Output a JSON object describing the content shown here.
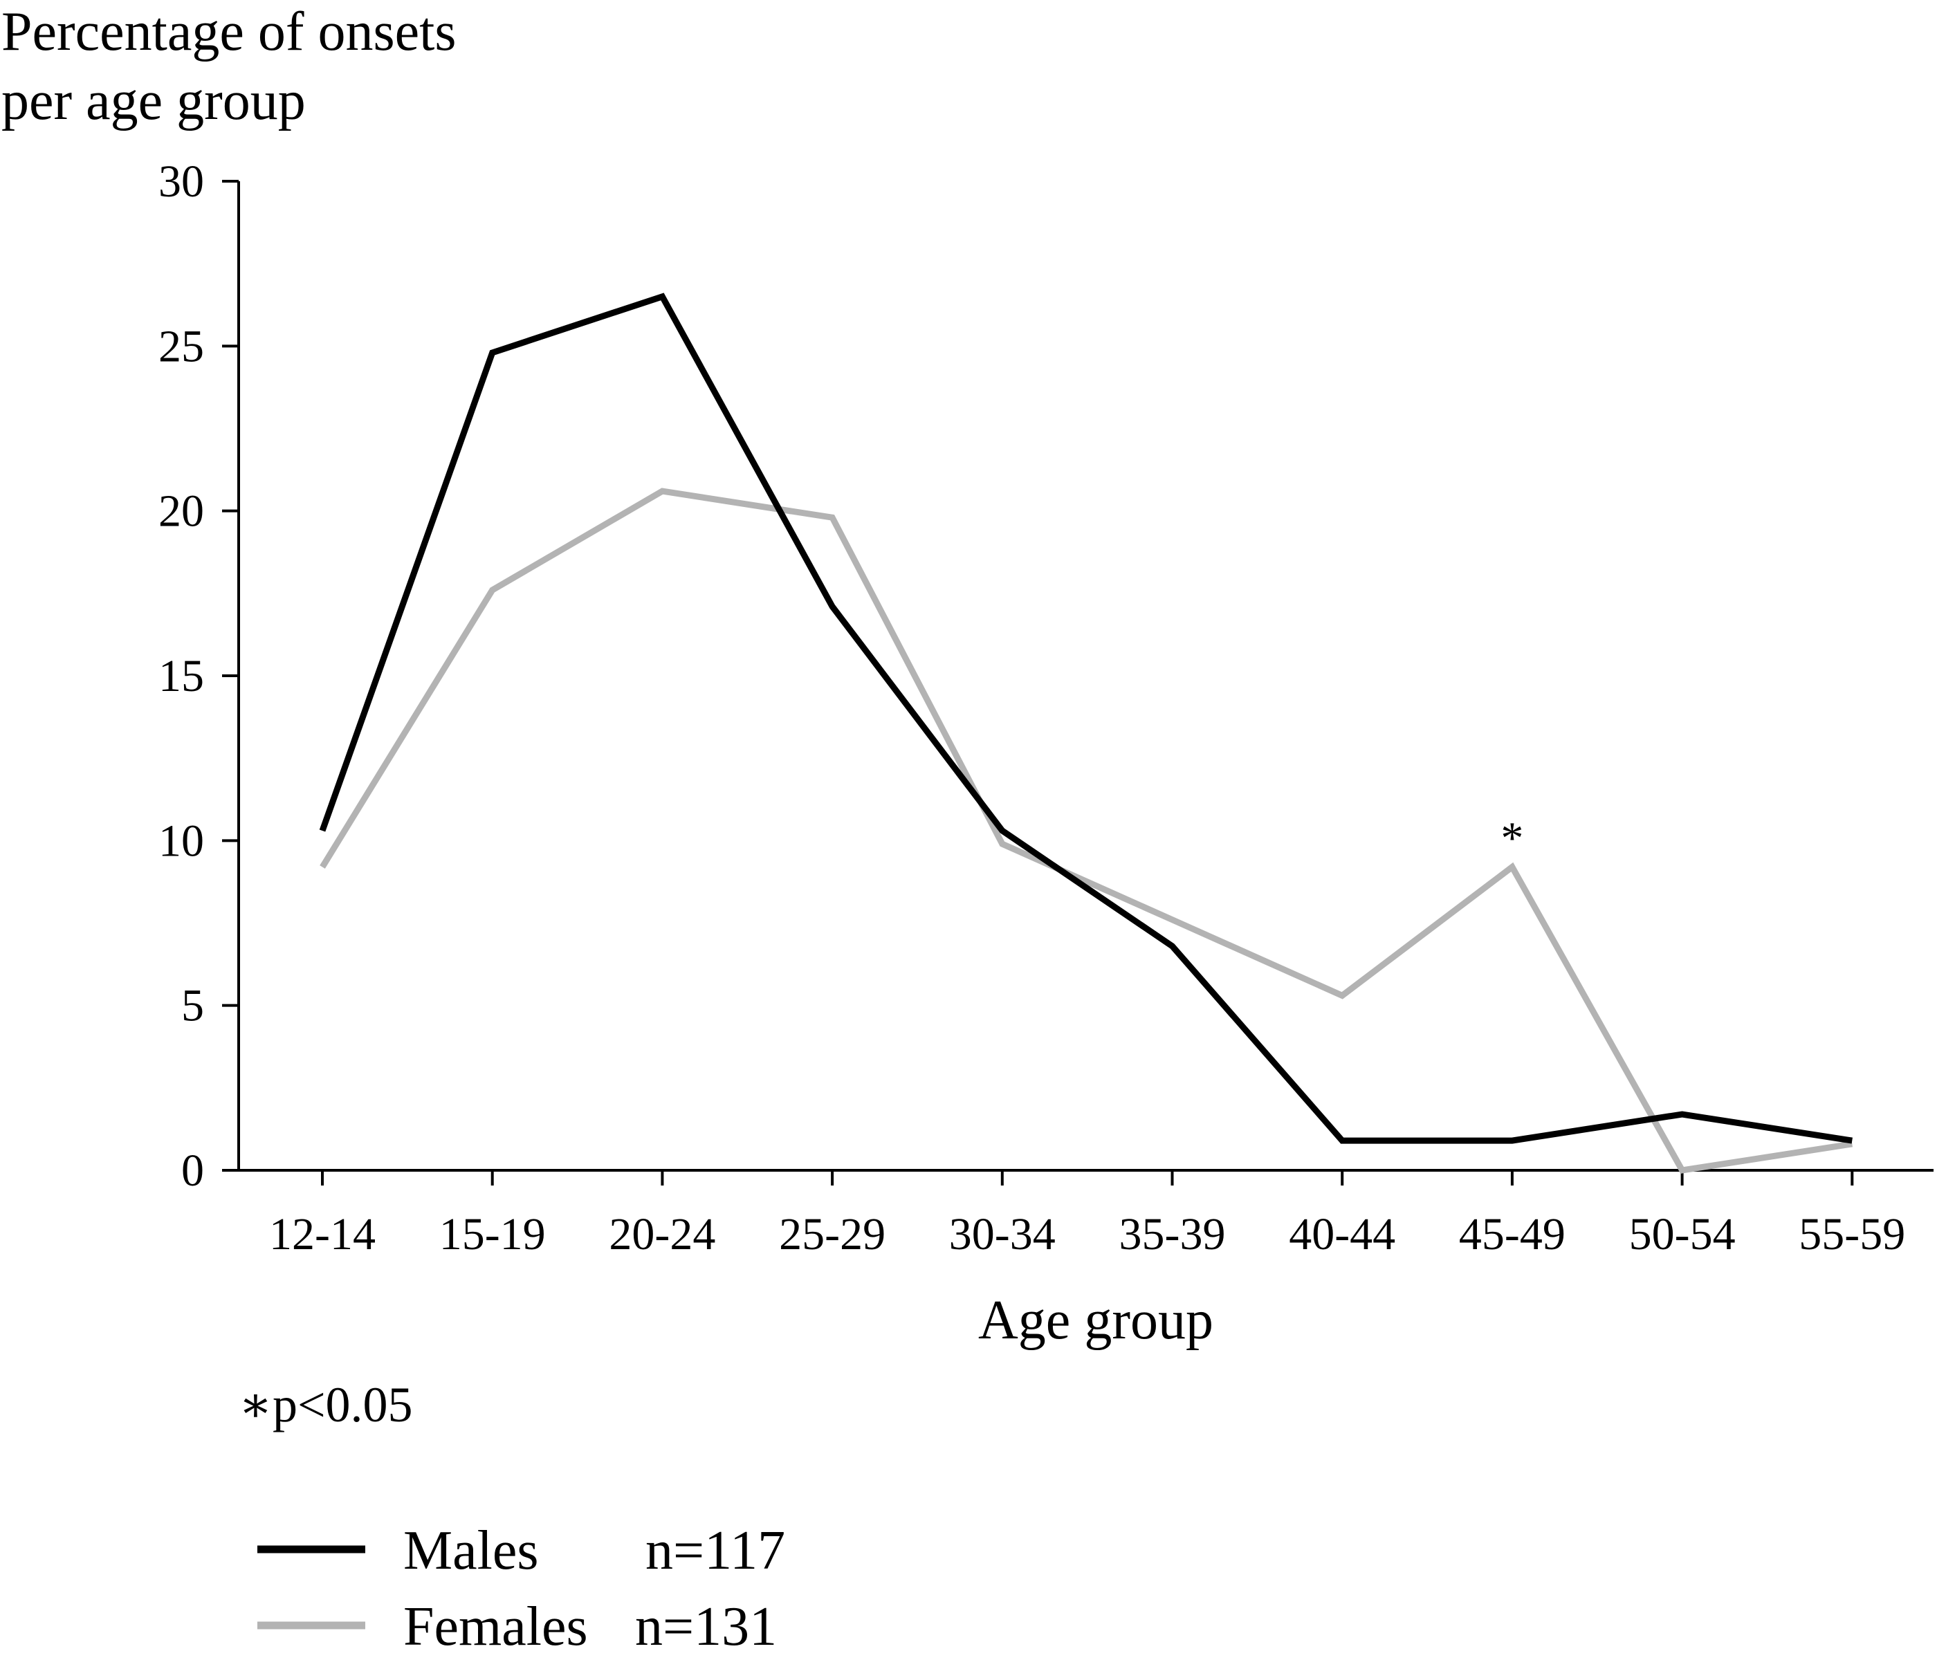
{
  "chart_data": {
    "type": "line",
    "ylabel_lines": [
      "Percentage of onsets",
      "per age group"
    ],
    "xlabel": "Age group",
    "categories": [
      "12-14",
      "15-19",
      "20-24",
      "25-29",
      "30-34",
      "35-39",
      "40-44",
      "45-49",
      "50-54",
      "55-59"
    ],
    "ylim": [
      0,
      30
    ],
    "yticks": [
      0,
      5,
      10,
      15,
      20,
      25,
      30
    ],
    "grid": false,
    "series": [
      {
        "name": "Males",
        "n_label": "n=117",
        "color": "#000000",
        "values": [
          10.3,
          24.8,
          26.5,
          17.1,
          10.3,
          6.8,
          0.9,
          0.9,
          1.7,
          0.9
        ]
      },
      {
        "name": "Females",
        "n_label": "n=131",
        "color": "#b3b3b3",
        "values": [
          9.2,
          17.6,
          20.6,
          19.8,
          9.9,
          7.6,
          5.3,
          9.2,
          0.0,
          0.8
        ]
      }
    ],
    "annotation": {
      "mark": "*",
      "category": "45-49",
      "series": "Females"
    },
    "footnote": "∗p<0.05",
    "legend_position": "bottom-left"
  }
}
